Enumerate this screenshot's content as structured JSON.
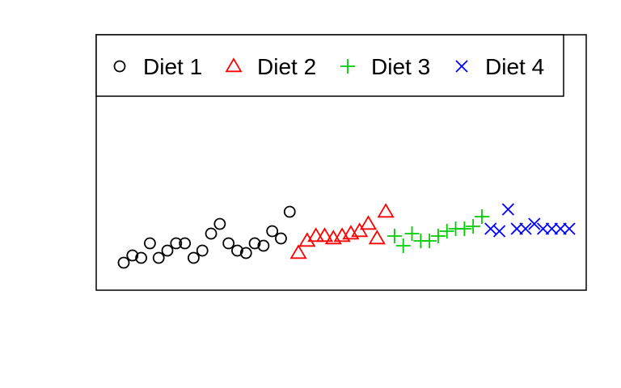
{
  "chart_data": {
    "type": "scatter",
    "title": "",
    "xlabel": "",
    "ylabel": "",
    "axes_visible": false,
    "legend": {
      "placement": "top",
      "orientation": "horizontal",
      "boxed": true
    },
    "ylim": [
      0,
      10
    ],
    "xlim": [
      0,
      52
    ],
    "series": [
      {
        "name": "Diet 1",
        "marker": "circle",
        "color": "#000000",
        "x": [
          1,
          2,
          3,
          4,
          5,
          6,
          7,
          8,
          9,
          10,
          11,
          12,
          13,
          14,
          15,
          16,
          17,
          18,
          19,
          20
        ],
        "y": [
          0.9,
          1.2,
          1.1,
          1.7,
          1.1,
          1.4,
          1.7,
          1.7,
          1.1,
          1.4,
          2.1,
          2.5,
          1.7,
          1.4,
          1.3,
          1.7,
          1.6,
          2.2,
          1.9,
          3.0
        ]
      },
      {
        "name": "Diet 2",
        "marker": "triangle",
        "color": "#ff0000",
        "x": [
          21,
          22,
          23,
          24,
          25,
          26,
          27,
          28,
          29,
          30,
          31
        ],
        "y": [
          1.3,
          1.8,
          2.0,
          2.0,
          1.9,
          2.0,
          2.1,
          2.2,
          2.5,
          1.9,
          3.0
        ]
      },
      {
        "name": "Diet 3",
        "marker": "plus",
        "color": "#00cd00",
        "x": [
          32,
          33,
          34,
          35,
          36,
          37,
          38,
          39,
          40,
          41,
          42
        ],
        "y": [
          2.0,
          1.6,
          2.1,
          1.8,
          1.8,
          2.0,
          2.2,
          2.3,
          2.3,
          2.4,
          2.8
        ]
      },
      {
        "name": "Diet 4",
        "marker": "cross",
        "color": "#0000ff",
        "x": [
          43,
          44,
          45,
          46,
          47,
          48,
          49,
          50,
          51,
          52
        ],
        "y": [
          2.3,
          2.2,
          3.1,
          2.3,
          2.3,
          2.5,
          2.3,
          2.3,
          2.3,
          2.3
        ]
      }
    ]
  }
}
